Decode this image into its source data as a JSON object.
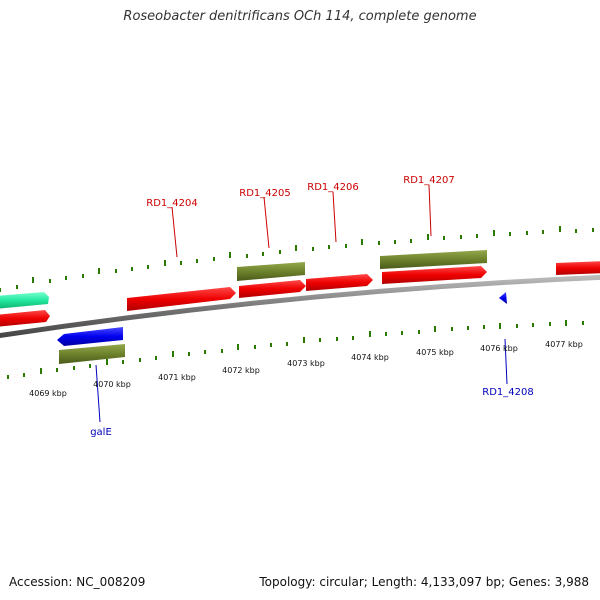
{
  "title": "Roseobacter denitrificans OCh 114, complete genome",
  "footer": {
    "accession": "Accession: NC_008209",
    "summary": "Topology: circular; Length: 4,133,097 bp; Genes: 3,988"
  },
  "colors": {
    "gene_red": "#e00000",
    "gene_olive": "#6b7f2a",
    "gene_blue": "#0000dd",
    "gene_teal": "#1ee8a0",
    "tick_green": "#2a7a00",
    "label_red": "#cc0000",
    "label_blue": "#0000bb",
    "backbone": "#888888"
  },
  "scale_labels": [
    "4069 kbp",
    "4070 kbp",
    "4071 kbp",
    "4072 kbp",
    "4073 kbp",
    "4074 kbp",
    "4075 kbp",
    "4076 kbp",
    "4077 kbp"
  ],
  "gene_labels": [
    {
      "text": "RD1_4204",
      "color": "red"
    },
    {
      "text": "RD1_4205",
      "color": "red"
    },
    {
      "text": "RD1_4206",
      "color": "red"
    },
    {
      "text": "RD1_4207",
      "color": "red"
    },
    {
      "text": "galE",
      "color": "blue"
    },
    {
      "text": "RD1_4208",
      "color": "blue"
    }
  ]
}
